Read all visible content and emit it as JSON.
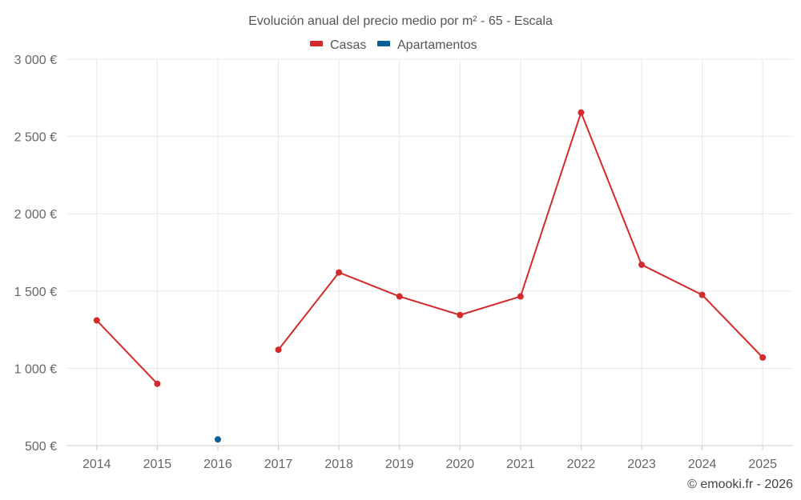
{
  "chart_data": {
    "type": "line",
    "title": "Evolución anual del precio medio por m² - 65 - Escala",
    "categories": [
      "2014",
      "2015",
      "2016",
      "2017",
      "2018",
      "2019",
      "2020",
      "2021",
      "2022",
      "2023",
      "2024",
      "2025"
    ],
    "series": [
      {
        "name": "Casas",
        "color": "#d42a2a",
        "values": [
          1310,
          900,
          null,
          1120,
          1620,
          1465,
          1345,
          1465,
          2655,
          1670,
          1475,
          1070
        ]
      },
      {
        "name": "Apartamentos",
        "color": "#0c5e96",
        "values": [
          null,
          null,
          540,
          null,
          null,
          null,
          null,
          null,
          null,
          null,
          null,
          null
        ]
      }
    ],
    "yticks": [
      500,
      1000,
      1500,
      2000,
      2500,
      3000
    ],
    "ytick_labels": [
      "500 €",
      "1 000 €",
      "1 500 €",
      "2 000 €",
      "2 500 €",
      "3 000 €"
    ],
    "ylim": [
      500,
      3000
    ],
    "xlabel": "",
    "ylabel": "",
    "grid": true,
    "legend_position": "top-center"
  },
  "credit": "© emooki.fr - 2026"
}
